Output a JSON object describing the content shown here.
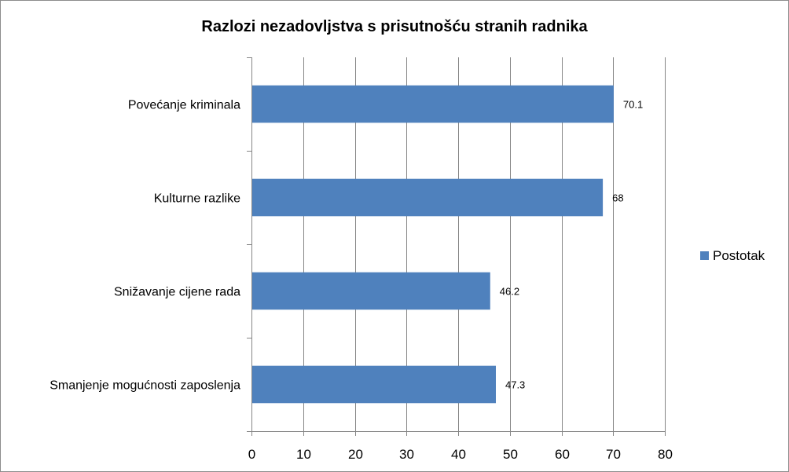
{
  "chart_data": {
    "type": "bar",
    "orientation": "horizontal",
    "title": "Razlozi nezadovljstva s prisutnošću stranih radnika",
    "categories": [
      "Smanjenje mogućnosti zaposlenja",
      "Snižavanje cijene rada",
      "Kulturne razlike",
      "Povećanje kriminala"
    ],
    "series": [
      {
        "name": "Postotak",
        "values": [
          47.3,
          46.2,
          68,
          70.1
        ],
        "labels": [
          "47.3",
          "46.2",
          "68",
          "70.1"
        ],
        "color": "#4f81bd"
      }
    ],
    "xlim": [
      0,
      80
    ],
    "xticks": [
      "0",
      "10",
      "20",
      "30",
      "40",
      "50",
      "60",
      "70",
      "80"
    ],
    "grid": true,
    "legend_position": "right"
  }
}
